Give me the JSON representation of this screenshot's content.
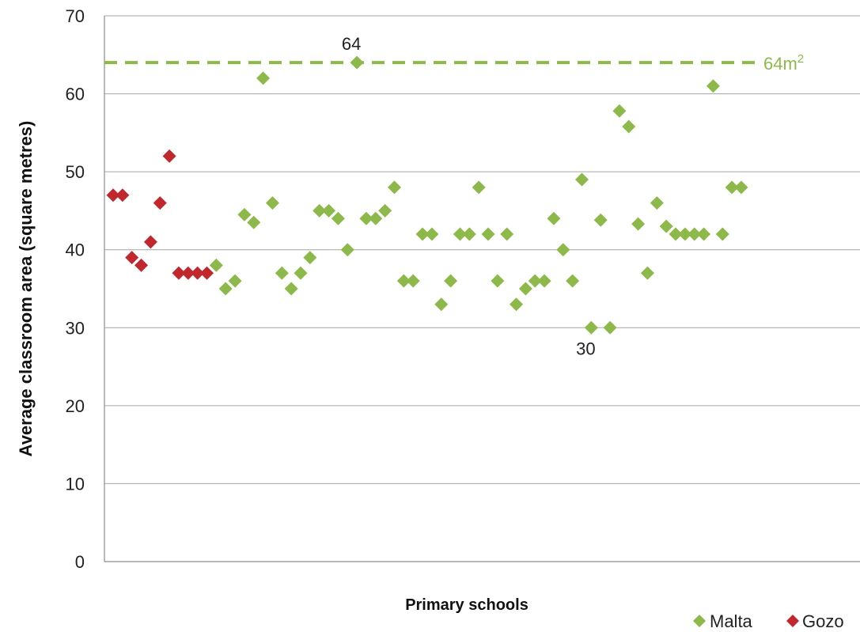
{
  "chart_data": {
    "type": "scatter",
    "title": "",
    "xlabel": "Primary schools",
    "ylabel": "Average classroom area (square metres)",
    "ylim": [
      0,
      70
    ],
    "yticks": [
      0,
      10,
      20,
      30,
      40,
      50,
      60,
      70
    ],
    "grid": "horizontal",
    "legend_position": "bottom-right",
    "x_count": 70,
    "series": [
      {
        "name": "Malta",
        "color": "#8DB84A",
        "marker": "diamond",
        "points": [
          {
            "x": 12,
            "y": 38
          },
          {
            "x": 13,
            "y": 35
          },
          {
            "x": 14,
            "y": 36
          },
          {
            "x": 15,
            "y": 44.5
          },
          {
            "x": 16,
            "y": 43.5
          },
          {
            "x": 17,
            "y": 62
          },
          {
            "x": 18,
            "y": 46
          },
          {
            "x": 19,
            "y": 37
          },
          {
            "x": 20,
            "y": 35
          },
          {
            "x": 21,
            "y": 37
          },
          {
            "x": 22,
            "y": 39
          },
          {
            "x": 23,
            "y": 45
          },
          {
            "x": 24,
            "y": 45
          },
          {
            "x": 25,
            "y": 44
          },
          {
            "x": 26,
            "y": 40
          },
          {
            "x": 27,
            "y": 64
          },
          {
            "x": 28,
            "y": 44
          },
          {
            "x": 29,
            "y": 44
          },
          {
            "x": 30,
            "y": 45
          },
          {
            "x": 31,
            "y": 48
          },
          {
            "x": 32,
            "y": 36
          },
          {
            "x": 33,
            "y": 36
          },
          {
            "x": 34,
            "y": 42
          },
          {
            "x": 35,
            "y": 42
          },
          {
            "x": 36,
            "y": 33
          },
          {
            "x": 37,
            "y": 36
          },
          {
            "x": 38,
            "y": 42
          },
          {
            "x": 39,
            "y": 42
          },
          {
            "x": 40,
            "y": 48
          },
          {
            "x": 41,
            "y": 42
          },
          {
            "x": 42,
            "y": 36
          },
          {
            "x": 43,
            "y": 42
          },
          {
            "x": 44,
            "y": 33
          },
          {
            "x": 45,
            "y": 35
          },
          {
            "x": 46,
            "y": 36
          },
          {
            "x": 47,
            "y": 36
          },
          {
            "x": 48,
            "y": 44
          },
          {
            "x": 49,
            "y": 40
          },
          {
            "x": 50,
            "y": 36
          },
          {
            "x": 51,
            "y": 49
          },
          {
            "x": 52,
            "y": 30
          },
          {
            "x": 53,
            "y": 43.8
          },
          {
            "x": 54,
            "y": 30
          },
          {
            "x": 55,
            "y": 57.8
          },
          {
            "x": 56,
            "y": 55.8
          },
          {
            "x": 57,
            "y": 43.3
          },
          {
            "x": 58,
            "y": 37
          },
          {
            "x": 59,
            "y": 46
          },
          {
            "x": 60,
            "y": 43
          },
          {
            "x": 61,
            "y": 42
          },
          {
            "x": 62,
            "y": 42
          },
          {
            "x": 63,
            "y": 42
          },
          {
            "x": 64,
            "y": 42
          },
          {
            "x": 65,
            "y": 61
          },
          {
            "x": 66,
            "y": 42
          },
          {
            "x": 67,
            "y": 48
          },
          {
            "x": 68,
            "y": 48
          }
        ]
      },
      {
        "name": "Gozo",
        "color": "#C0282D",
        "marker": "diamond",
        "points": [
          {
            "x": 1,
            "y": 47
          },
          {
            "x": 2,
            "y": 47
          },
          {
            "x": 3,
            "y": 39
          },
          {
            "x": 4,
            "y": 38
          },
          {
            "x": 5,
            "y": 41
          },
          {
            "x": 6,
            "y": 46
          },
          {
            "x": 7,
            "y": 52
          },
          {
            "x": 8,
            "y": 37
          },
          {
            "x": 9,
            "y": 37
          },
          {
            "x": 10,
            "y": 37
          },
          {
            "x": 11,
            "y": 37
          }
        ]
      }
    ],
    "reference_line": {
      "y": 64,
      "label": "64m",
      "label_sup": "2",
      "color": "#8DB84A"
    },
    "annotations": [
      {
        "text": "64",
        "x": 27,
        "y": 64,
        "position": "above"
      },
      {
        "text": "30",
        "x": 52,
        "y": 30,
        "position": "below"
      }
    ]
  }
}
